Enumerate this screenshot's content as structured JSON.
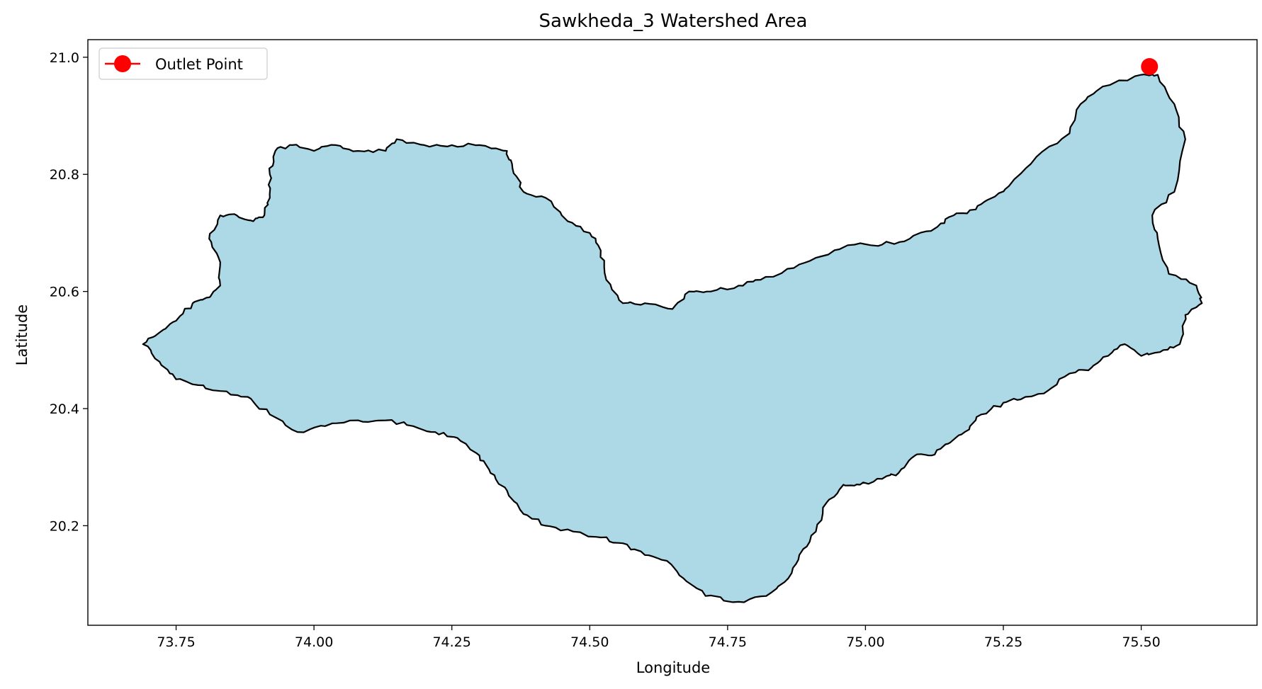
{
  "chart_data": {
    "type": "map",
    "title": "Sawkheda_3 Watershed Area",
    "xlabel": "Longitude",
    "ylabel": "Latitude",
    "xlim": [
      73.59,
      75.71
    ],
    "ylim": [
      20.03,
      21.03
    ],
    "x_ticks": [
      73.75,
      74.0,
      74.25,
      74.5,
      74.75,
      75.0,
      75.25,
      75.5
    ],
    "x_tick_labels": [
      "73.75",
      "74.00",
      "74.25",
      "74.50",
      "74.75",
      "75.00",
      "75.25",
      "75.50"
    ],
    "y_ticks": [
      20.2,
      20.4,
      20.6,
      20.8,
      21.0
    ],
    "y_tick_labels": [
      "20.2",
      "20.4",
      "20.6",
      "20.8",
      "21.0"
    ],
    "grid": false,
    "legend": {
      "placement": "top-left",
      "entries": [
        {
          "label": "Outlet Point",
          "color": "#ff0000",
          "marker": "circle"
        }
      ]
    },
    "watershed": {
      "fill_color": "#add8e6",
      "edge_color": "#000000",
      "boundary": [
        [
          73.69,
          20.51
        ],
        [
          73.72,
          20.53
        ],
        [
          73.75,
          20.55
        ],
        [
          73.78,
          20.58
        ],
        [
          73.81,
          20.59
        ],
        [
          73.83,
          20.61
        ],
        [
          73.83,
          20.65
        ],
        [
          73.81,
          20.69
        ],
        [
          73.83,
          20.73
        ],
        [
          73.86,
          20.73
        ],
        [
          73.89,
          20.72
        ],
        [
          73.91,
          20.73
        ],
        [
          73.92,
          20.76
        ],
        [
          73.92,
          20.8
        ],
        [
          73.93,
          20.84
        ],
        [
          73.96,
          20.85
        ],
        [
          74.0,
          20.84
        ],
        [
          74.04,
          20.85
        ],
        [
          74.08,
          20.84
        ],
        [
          74.13,
          20.84
        ],
        [
          74.15,
          20.86
        ],
        [
          74.2,
          20.85
        ],
        [
          74.25,
          20.85
        ],
        [
          74.3,
          20.85
        ],
        [
          74.35,
          20.84
        ],
        [
          74.36,
          20.81
        ],
        [
          74.38,
          20.77
        ],
        [
          74.42,
          20.76
        ],
        [
          74.46,
          20.72
        ],
        [
          74.5,
          20.7
        ],
        [
          74.52,
          20.67
        ],
        [
          74.53,
          20.62
        ],
        [
          74.56,
          20.58
        ],
        [
          74.6,
          20.58
        ],
        [
          74.65,
          20.57
        ],
        [
          74.68,
          20.6
        ],
        [
          74.72,
          20.6
        ],
        [
          74.77,
          20.61
        ],
        [
          74.81,
          20.62
        ],
        [
          74.87,
          20.64
        ],
        [
          74.92,
          20.66
        ],
        [
          74.98,
          20.68
        ],
        [
          75.03,
          20.68
        ],
        [
          75.08,
          20.69
        ],
        [
          75.13,
          20.71
        ],
        [
          75.16,
          20.73
        ],
        [
          75.2,
          20.74
        ],
        [
          75.23,
          20.76
        ],
        [
          75.26,
          20.78
        ],
        [
          75.31,
          20.83
        ],
        [
          75.37,
          20.87
        ],
        [
          75.39,
          20.92
        ],
        [
          75.43,
          20.95
        ],
        [
          75.5,
          20.97
        ],
        [
          75.53,
          20.97
        ],
        [
          75.56,
          20.92
        ],
        [
          75.58,
          20.86
        ],
        [
          75.56,
          20.77
        ],
        [
          75.52,
          20.73
        ],
        [
          75.53,
          20.69
        ],
        [
          75.55,
          20.63
        ],
        [
          75.6,
          20.61
        ],
        [
          75.61,
          20.58
        ],
        [
          75.58,
          20.56
        ],
        [
          75.57,
          20.51
        ],
        [
          75.54,
          20.5
        ],
        [
          75.5,
          20.49
        ],
        [
          75.47,
          20.51
        ],
        [
          75.44,
          20.49
        ],
        [
          75.41,
          20.47
        ],
        [
          75.37,
          20.46
        ],
        [
          75.33,
          20.43
        ],
        [
          75.29,
          20.42
        ],
        [
          75.25,
          20.41
        ],
        [
          75.21,
          20.39
        ],
        [
          75.18,
          20.36
        ],
        [
          75.15,
          20.34
        ],
        [
          75.12,
          20.32
        ],
        [
          75.09,
          20.32
        ],
        [
          75.06,
          20.29
        ],
        [
          75.03,
          20.28
        ],
        [
          74.99,
          20.27
        ],
        [
          74.96,
          20.27
        ],
        [
          74.93,
          20.24
        ],
        [
          74.91,
          20.19
        ],
        [
          74.88,
          20.15
        ],
        [
          74.86,
          20.11
        ],
        [
          74.82,
          20.08
        ],
        [
          74.77,
          20.07
        ],
        [
          74.71,
          20.08
        ],
        [
          74.67,
          20.11
        ],
        [
          74.64,
          20.14
        ],
        [
          74.6,
          20.15
        ],
        [
          74.56,
          20.17
        ],
        [
          74.52,
          20.18
        ],
        [
          74.47,
          20.19
        ],
        [
          74.42,
          20.2
        ],
        [
          74.38,
          20.22
        ],
        [
          74.35,
          20.26
        ],
        [
          74.32,
          20.29
        ],
        [
          74.3,
          20.32
        ],
        [
          74.26,
          20.35
        ],
        [
          74.22,
          20.36
        ],
        [
          74.18,
          20.37
        ],
        [
          74.13,
          20.38
        ],
        [
          74.08,
          20.38
        ],
        [
          74.02,
          20.37
        ],
        [
          73.97,
          20.36
        ],
        [
          73.92,
          20.39
        ],
        [
          73.88,
          20.42
        ],
        [
          73.83,
          20.43
        ],
        [
          73.79,
          20.44
        ],
        [
          73.75,
          20.45
        ],
        [
          73.72,
          20.48
        ]
      ]
    },
    "outlet_point": {
      "label": "Outlet Point",
      "lon": 75.515,
      "lat": 20.984,
      "color": "#ff0000"
    }
  }
}
